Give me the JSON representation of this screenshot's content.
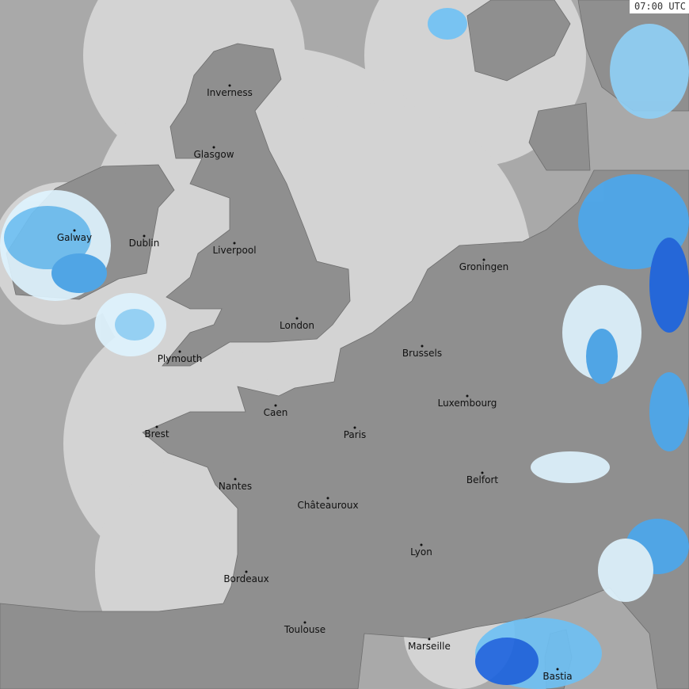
{
  "timestamp": "07:00 UTC",
  "colors": {
    "outside_coverage": "#a9a9a9",
    "coverage_sea": "#d3d3d3",
    "land": "#8f8f8f",
    "rain_light": "#dff4ff",
    "rain_moderate": "#4aa8ef",
    "rain_heavy": "#1a63e0"
  },
  "cities": [
    "Inverness",
    "Glasgow",
    "Galway",
    "Dublin",
    "Liverpool",
    "London",
    "Plymouth",
    "Groningen",
    "Brussels",
    "Luxembourg",
    "Caen",
    "Brest",
    "Paris",
    "Belfort",
    "Nantes",
    "Châteauroux",
    "Lyon",
    "Bordeaux",
    "Toulouse",
    "Marseille",
    "Bastia"
  ]
}
